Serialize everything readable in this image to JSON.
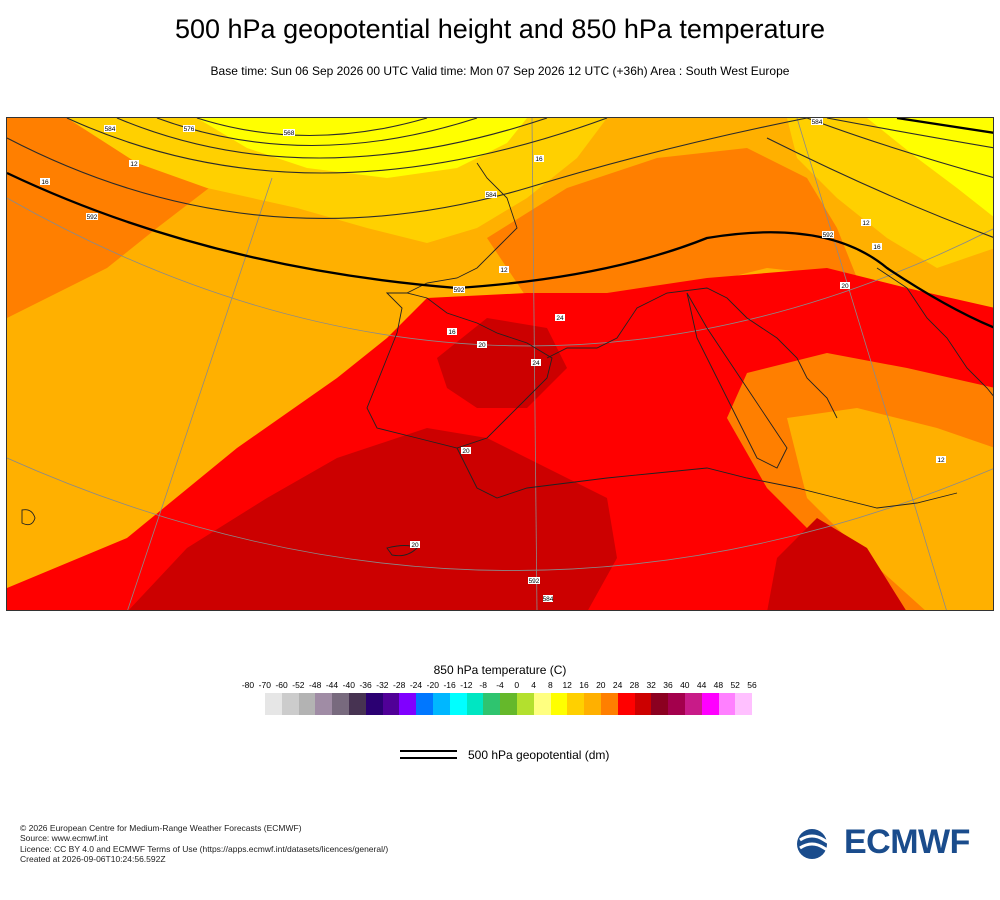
{
  "title": "500 hPa geopotential height and 850 hPa temperature",
  "subtitle": "Base time: Sun 06 Sep 2026 00 UTC Valid time: Mon 07 Sep 2026 12 UTC (+36h) Area : South West Europe",
  "legend": {
    "title": "850 hPa temperature (C)",
    "ticks": [
      "-80",
      "-70",
      "-60",
      "-52",
      "-48",
      "-44",
      "-40",
      "-36",
      "-32",
      "-28",
      "-24",
      "-20",
      "-16",
      "-12",
      "-8",
      "-4",
      "0",
      "4",
      "8",
      "12",
      "16",
      "20",
      "24",
      "28",
      "32",
      "36",
      "40",
      "44",
      "48",
      "52",
      "56"
    ],
    "colors": [
      "#e6e6e6",
      "#cccccc",
      "#b3b3b3",
      "#a08ca5",
      "#786a7e",
      "#473352",
      "#2b0072",
      "#500097",
      "#8000ff",
      "#0077ff",
      "#00b7ff",
      "#00ffff",
      "#00e6c2",
      "#2fc46f",
      "#65b82b",
      "#b3e02e",
      "#ffff80",
      "#ffff00",
      "#ffd000",
      "#ffb000",
      "#ff7f00",
      "#ff0000",
      "#cc0000",
      "#8b0020",
      "#a3004c",
      "#c81b88",
      "#ff00ff",
      "#ff80ff",
      "#ffc0ff",
      "#e6c0e6",
      "#e0e0e0"
    ],
    "line_label": "500 hPa geopotential (dm)"
  },
  "map": {
    "contour_labels": [
      "584",
      "576",
      "568",
      "12",
      "16",
      "592",
      "16",
      "584",
      "12",
      "584",
      "592",
      "16",
      "592",
      "12",
      "16",
      "20",
      "24",
      "20",
      "24",
      "20",
      "20",
      "592",
      "584",
      "12",
      "16",
      "20",
      "24",
      "24",
      "20",
      "20"
    ]
  },
  "footer": {
    "copyright": "© 2026 European Centre for Medium-Range Weather Forecasts (ECMWF)",
    "source": "Source: www.ecmwf.int",
    "licence": "Licence: CC BY 4.0 and ECMWF Terms of Use (https://apps.ecmwf.int/datasets/licences/general/)",
    "created": "Created at 2026-09-06T10:24:56.592Z"
  },
  "logo": {
    "text": "ECMWF",
    "color": "#1a4c8c"
  }
}
